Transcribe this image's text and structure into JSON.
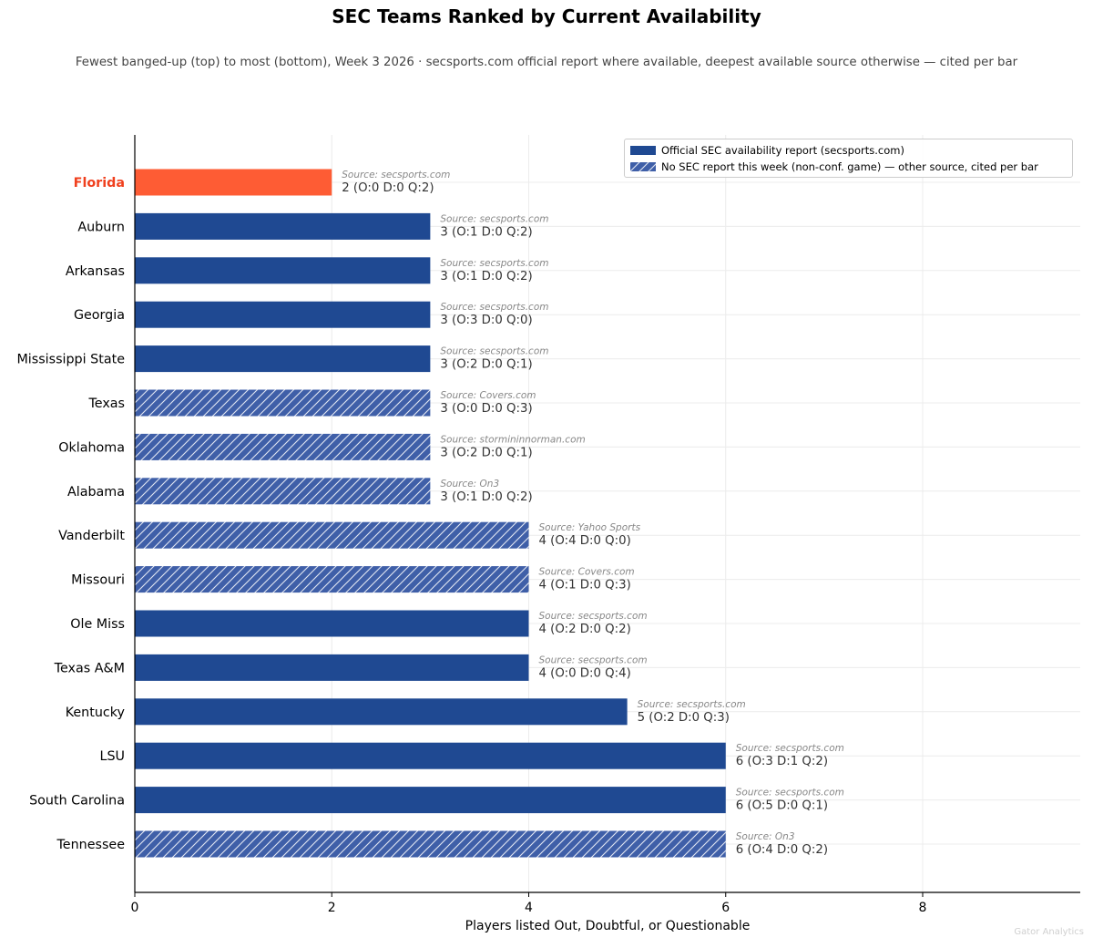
{
  "chart_data": {
    "type": "bar",
    "orientation": "horizontal",
    "title": "SEC Teams Ranked by Current Availability",
    "subtitle": "Fewest banged-up (top) to most (bottom), Week 3 2026 · secsports.com official report where available, deepest available source otherwise — cited per bar",
    "xlabel": "Players listed Out, Doubtful, or Questionable",
    "ylabel": "",
    "xlim": [
      0,
      9.6
    ],
    "xticks": [
      "0",
      "2",
      "4",
      "6",
      "8"
    ],
    "grid": true,
    "legend_position": "top-right",
    "legend": [
      {
        "label": "Official SEC availability report (secsports.com)",
        "style": "solid"
      },
      {
        "label": "No SEC report this week (non-conf. game) — other source, cited per bar",
        "style": "hatched"
      }
    ],
    "colors": {
      "official": "#1f4992",
      "other": "#3f5fa8",
      "highlight": "#fe5c34",
      "highlight_label": "#f0401e"
    },
    "highlight_team": "Florida",
    "categories": [
      "Florida",
      "Auburn",
      "Arkansas",
      "Georgia",
      "Mississippi State",
      "Texas",
      "Oklahoma",
      "Alabama",
      "Vanderbilt",
      "Missouri",
      "Ole Miss",
      "Texas A&M",
      "Kentucky",
      "LSU",
      "South Carolina",
      "Tennessee"
    ],
    "values": [
      2,
      3,
      3,
      3,
      3,
      3,
      3,
      3,
      4,
      4,
      4,
      4,
      5,
      6,
      6,
      6
    ],
    "official": [
      true,
      true,
      true,
      true,
      true,
      false,
      false,
      false,
      false,
      false,
      true,
      true,
      true,
      true,
      true,
      false
    ],
    "sources": [
      "Source: secsports.com",
      "Source: secsports.com",
      "Source: secsports.com",
      "Source: secsports.com",
      "Source: secsports.com",
      "Source: Covers.com",
      "Source: stormininnorman.com",
      "Source: On3",
      "Source: Yahoo Sports",
      "Source: Covers.com",
      "Source: secsports.com",
      "Source: secsports.com",
      "Source: secsports.com",
      "Source: secsports.com",
      "Source: secsports.com",
      "Source: On3"
    ],
    "labels": [
      "2  (O:0 D:0 Q:2)",
      "3  (O:1 D:0 Q:2)",
      "3  (O:1 D:0 Q:2)",
      "3  (O:3 D:0 Q:0)",
      "3  (O:2 D:0 Q:1)",
      "3  (O:0 D:0 Q:3)",
      "3  (O:2 D:0 Q:1)",
      "3  (O:1 D:0 Q:2)",
      "4  (O:4 D:0 Q:0)",
      "4  (O:1 D:0 Q:3)",
      "4  (O:2 D:0 Q:2)",
      "4  (O:0 D:0 Q:4)",
      "5  (O:2 D:0 Q:3)",
      "6  (O:3 D:1 Q:2)",
      "6  (O:5 D:0 Q:1)",
      "6  (O:4 D:0 Q:2)"
    ]
  },
  "watermark": "Gator Analytics"
}
